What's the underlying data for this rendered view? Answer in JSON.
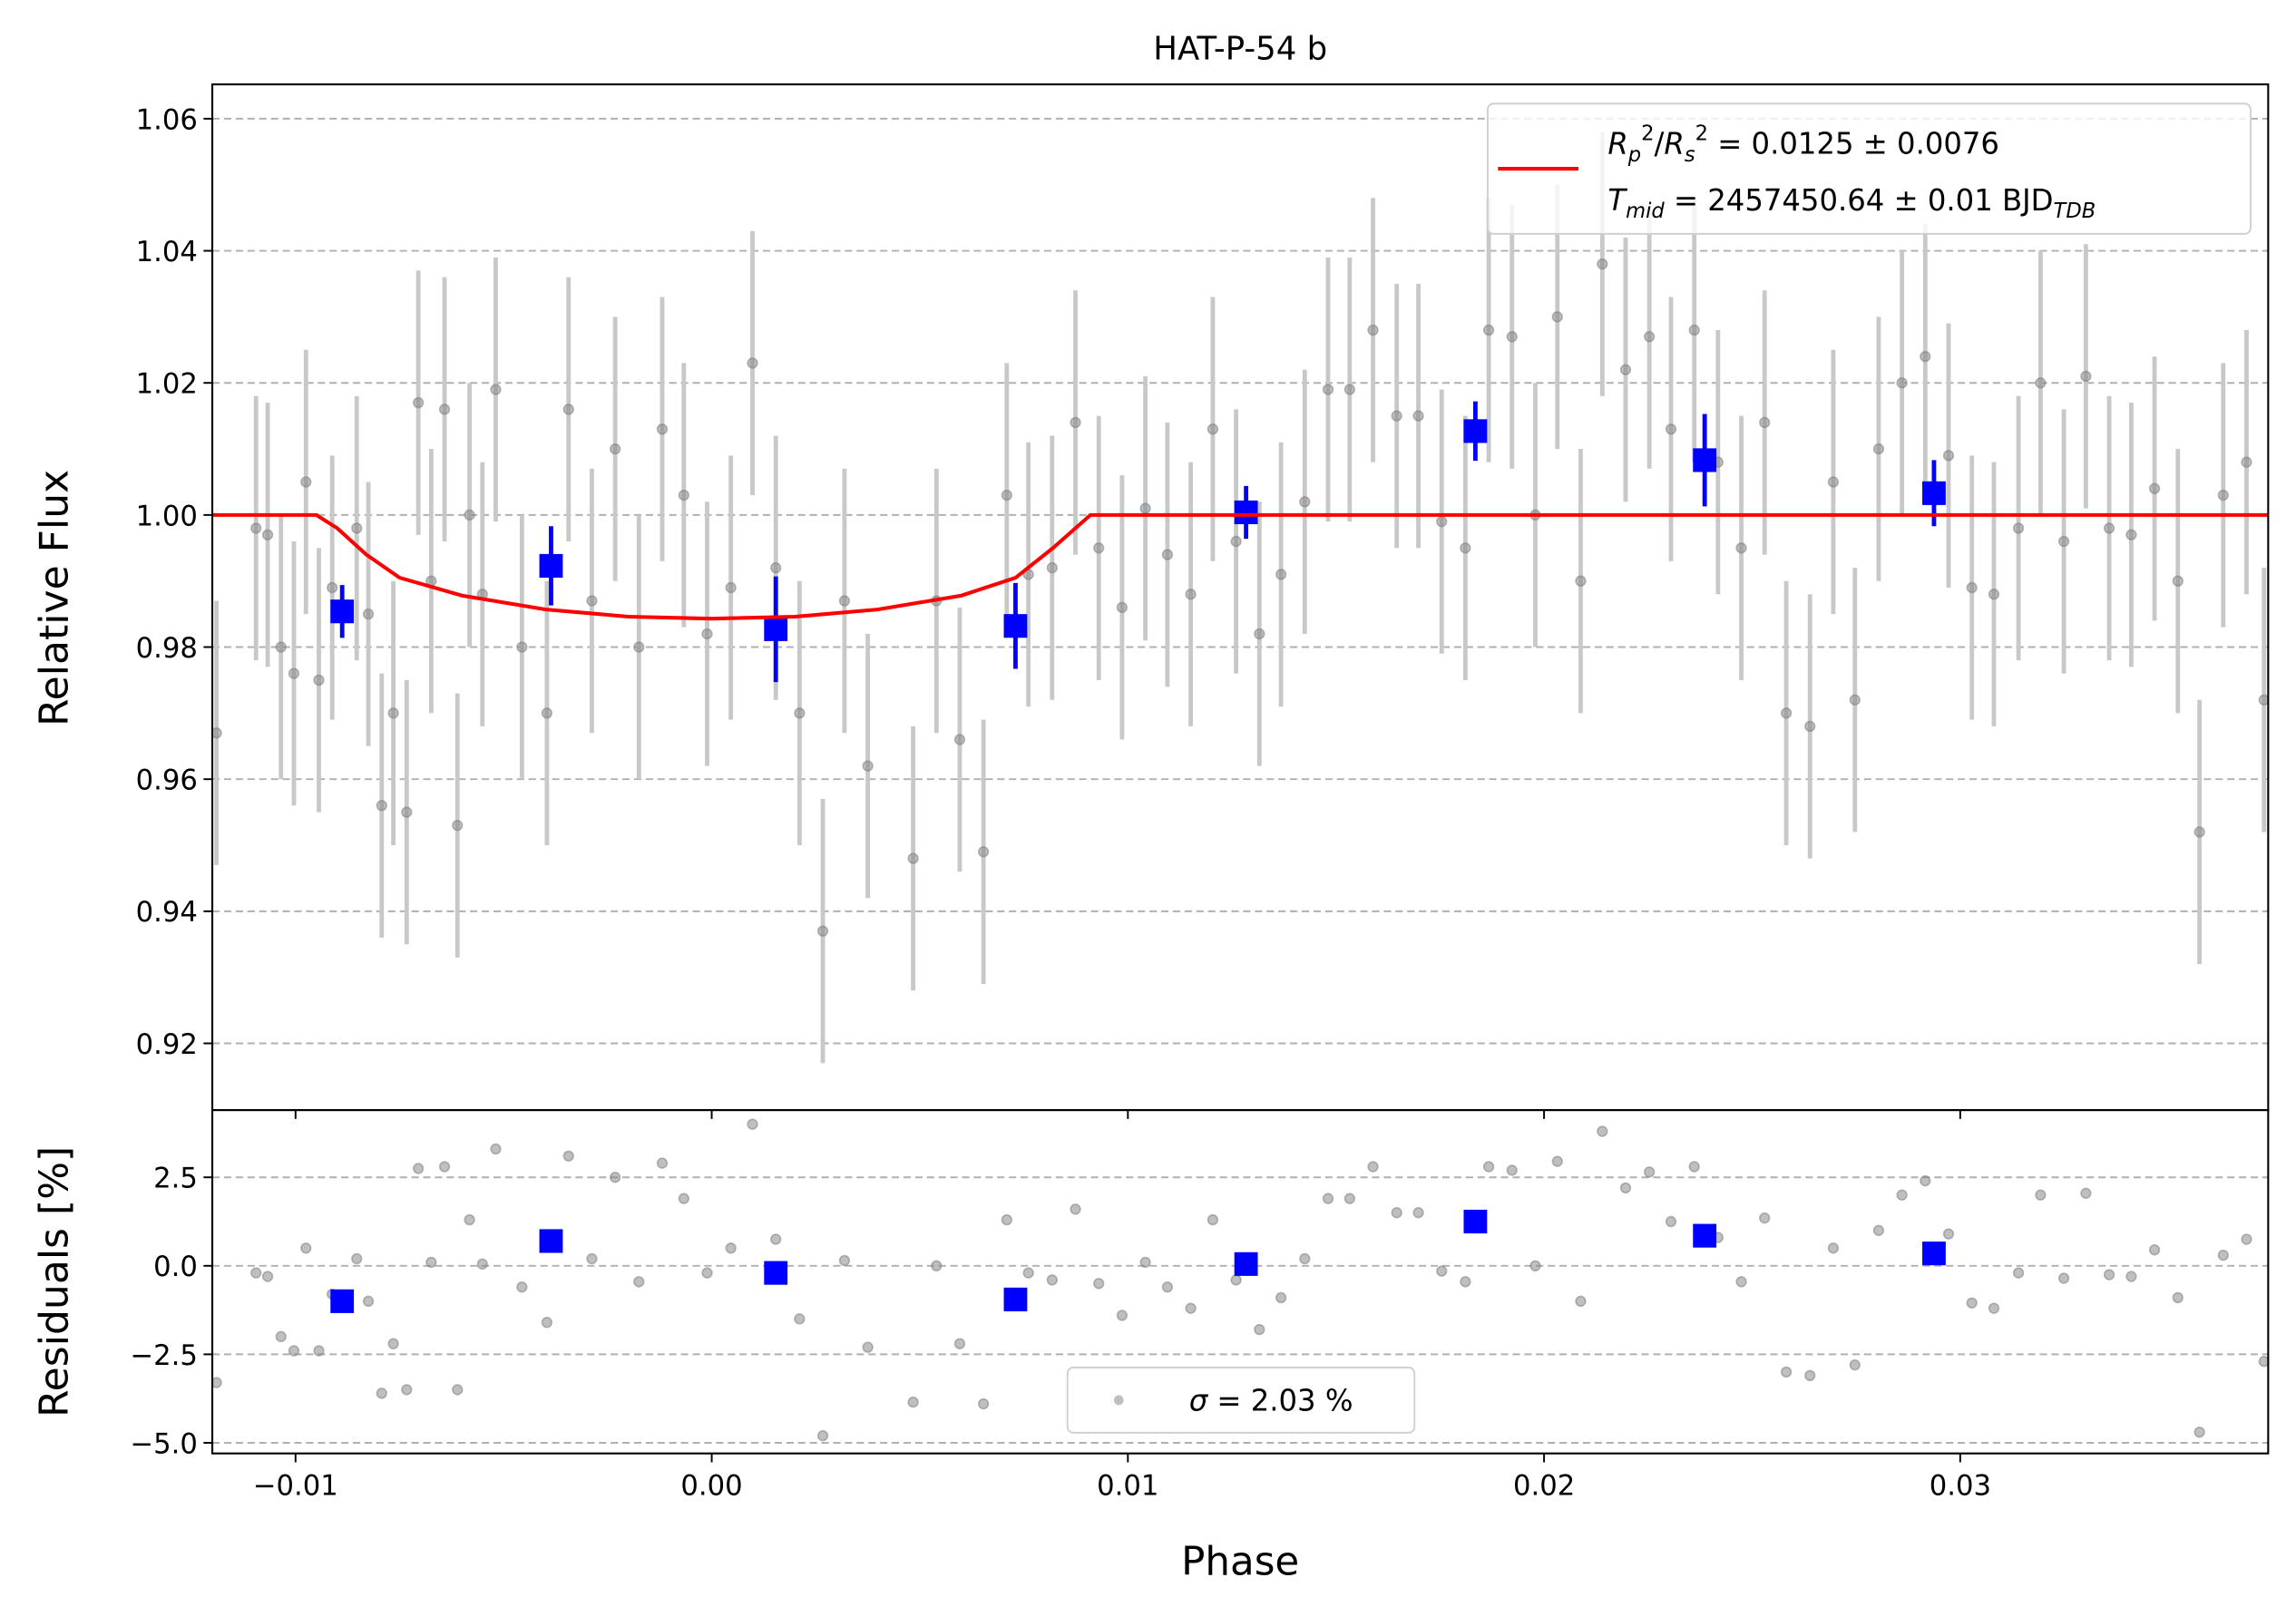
{
  "chart_data": [
    {
      "type": "scatter",
      "title": "HAT-P-54 b",
      "ylabel": "Relative Flux",
      "ylim": [
        0.9099,
        1.0652
      ],
      "yticks": [
        0.92,
        0.94,
        0.96,
        0.98,
        {
          "value": 1,
          "label": "1.00"
        },
        1.02,
        1.04,
        1.06
      ],
      "grid": true,
      "legend": "upper right",
      "series": [
        {
          "type": "scatter",
          "marker": "o",
          "color": "#808080",
          "errcolor": "#c8c8c8",
          "error": 0.02,
          "x": [
            -0.0119,
            -0.01095,
            -0.01067,
            -0.01035,
            -0.01004,
            -0.00975,
            -0.00944,
            -0.00912,
            -0.00853,
            -0.00825,
            -0.00793,
            -0.00765,
            -0.00733,
            -0.00705,
            -0.00674,
            -0.00642,
            -0.00611,
            -0.00582,
            -0.00551,
            -0.00519,
            -0.00456,
            -0.00396,
            -0.00344,
            -0.00288,
            -0.00232,
            -0.00175,
            -0.00119,
            -0.00067,
            -0.00011,
            0.00046,
            0.00098,
            0.00154,
            0.00211,
            0.00267,
            0.00319,
            0.00375,
            0.00484,
            0.0054,
            0.00596,
            0.00653,
            0.00709,
            0.00761,
            0.00818,
            0.00874,
            0.0093,
            0.00986,
            0.01042,
            0.01095,
            0.01151,
            0.01204,
            0.0126,
            0.01316,
            0.01368,
            0.01425,
            0.01481,
            0.01533,
            0.01589,
            0.01646,
            0.01698,
            0.01754,
            0.01811,
            0.01867,
            0.01923,
            0.01979,
            0.02032,
            0.02088,
            0.0214,
            0.02196,
            0.02253,
            0.02305,
            0.02361,
            0.02418,
            0.02474,
            0.0253,
            0.02582,
            0.02639,
            0.02695,
            0.02747,
            0.02804,
            0.0286,
            0.02916,
            0.02972,
            0.03028,
            0.03081,
            0.0314,
            0.03193,
            0.03249,
            0.03302,
            0.03358,
            0.03411,
            0.03467,
            0.03523,
            0.03575,
            0.03632,
            0.03688,
            0.0373
          ],
          "values": [
            0.967,
            0.998,
            0.997,
            0.98,
            0.976,
            1.005,
            0.975,
            0.989,
            0.998,
            0.985,
            0.956,
            0.97,
            0.955,
            1.017,
            0.99,
            1.016,
            0.953,
            1.0,
            0.988,
            1.019,
            0.98,
            0.97,
            1.016,
            0.987,
            1.01,
            0.98,
            1.013,
            1.003,
            0.982,
            0.989,
            1.023,
            0.992,
            0.97,
            0.937,
            0.987,
            0.962,
            0.948,
            0.987,
            0.966,
            0.949,
            1.003,
            0.991,
            0.992,
            1.014,
            0.995,
            0.986,
            1.001,
            0.994,
            0.988,
            1.013,
            0.996,
            0.982,
            0.991,
            1.002,
            1.019,
            1.019,
            1.028,
            1.015,
            1.015,
            0.999,
            0.995,
            1.028,
            1.027,
            1.0,
            1.03,
            0.99,
            1.038,
            1.022,
            1.027,
            1.013,
            1.028,
            1.008,
            0.995,
            1.014,
            0.97,
            0.968,
            1.005,
            0.972,
            1.01,
            1.02,
            1.024,
            1.009,
            0.989,
            0.988,
            0.998,
            1.02,
            0.996,
            1.021,
            0.998,
            0.997,
            1.004,
            0.99,
            0.952,
            1.003,
            1.008,
            0.972
          ]
        },
        {
          "type": "scatter",
          "marker": "s",
          "color": "#0000ff",
          "x": [
            -0.00888,
            -0.00386,
            0.00154,
            0.0073,
            0.01284,
            0.01835,
            0.02386,
            0.02937
          ],
          "values": [
            0.9854,
            0.9923,
            0.9827,
            0.9832,
            1.0004,
            1.0127,
            1.0083,
            1.0033
          ],
          "errors": [
            0.004,
            0.006,
            0.008,
            0.0065,
            0.004,
            0.0045,
            0.007,
            0.005
          ]
        },
        {
          "type": "line",
          "color": "#ff0000",
          "x": [
            -0.012,
            -0.0095,
            -0.009,
            -0.0083,
            -0.0075,
            -0.006,
            -0.004,
            -0.002,
            0,
            0.002,
            0.004,
            0.006,
            0.0073,
            0.0082,
            0.0091,
            0.0374
          ],
          "values": [
            1,
            1,
            0.998,
            0.994,
            0.9905,
            0.9878,
            0.9857,
            0.9846,
            0.9843,
            0.9846,
            0.9857,
            0.9878,
            0.9905,
            0.995,
            1,
            1
          ],
          "name": [
            [
              {
                "text": "R",
                "style": "italic"
              },
              {
                "text": "p",
                "style": "sub"
              },
              {
                "text": "2",
                "style": "sup"
              },
              {
                "text": "/",
                "style": "normal"
              },
              {
                "text": "R",
                "style": "italic"
              },
              {
                "text": "s",
                "style": "sub"
              },
              {
                "text": "2",
                "style": "sup"
              },
              {
                "text": " = 0.0125 ± 0.0076",
                "style": "normal"
              }
            ],
            [
              {
                "text": "T",
                "style": "italic"
              },
              {
                "text": "mid",
                "style": "sub"
              },
              {
                "text": " = 2457450.64 ± 0.01 BJD",
                "style": "normal"
              },
              {
                "text": "TDB",
                "style": "sub"
              }
            ]
          ]
        }
      ]
    },
    {
      "type": "scatter",
      "ylabel": "Residuals [%]",
      "xlabel": "Phase",
      "xlim": [
        -0.012,
        0.0374
      ],
      "xticks": [
        {
          "value": -0.01,
          "label": "−0.01"
        },
        {
          "value": 0,
          "label": "0.00"
        },
        0.01,
        0.02,
        0.03
      ],
      "ylim": [
        -5.3,
        4.4
      ],
      "yticks": [
        {
          "value": -5,
          "label": "−5.0"
        },
        {
          "value": -2.5,
          "label": "−2.5"
        },
        {
          "value": 0,
          "label": "0.0"
        },
        2.5
      ],
      "grid": true,
      "legend": "lower center",
      "series": [
        {
          "type": "scatter",
          "marker": "o",
          "color": "#808080",
          "x": [
            -0.0119,
            -0.01095,
            -0.01067,
            -0.01035,
            -0.01004,
            -0.00975,
            -0.00944,
            -0.00912,
            -0.00853,
            -0.00825,
            -0.00793,
            -0.00765,
            -0.00733,
            -0.00705,
            -0.00674,
            -0.00642,
            -0.00611,
            -0.00582,
            -0.00551,
            -0.00519,
            -0.00456,
            -0.00396,
            -0.00344,
            -0.00288,
            -0.00232,
            -0.00175,
            -0.00119,
            -0.00067,
            -0.00011,
            0.00046,
            0.00098,
            0.00154,
            0.00211,
            0.00267,
            0.00319,
            0.00375,
            0.00484,
            0.0054,
            0.00596,
            0.00653,
            0.00709,
            0.00761,
            0.00818,
            0.00874,
            0.0093,
            0.00986,
            0.01042,
            0.01095,
            0.01151,
            0.01204,
            0.0126,
            0.01316,
            0.01368,
            0.01425,
            0.01481,
            0.01533,
            0.01589,
            0.01646,
            0.01698,
            0.01754,
            0.01811,
            0.01867,
            0.01923,
            0.01979,
            0.02032,
            0.02088,
            0.0214,
            0.02196,
            0.02253,
            0.02305,
            0.02361,
            0.02418,
            0.02474,
            0.0253,
            0.02582,
            0.02639,
            0.02695,
            0.02747,
            0.02804,
            0.0286,
            0.02916,
            0.02972,
            0.03028,
            0.03081,
            0.0314,
            0.03193,
            0.03249,
            0.03302,
            0.03358,
            0.03411,
            0.03467,
            0.03523,
            0.03575,
            0.03632,
            0.03688,
            0.0373
          ],
          "values": [
            -3.3,
            -0.2,
            -0.3,
            -2.0,
            -2.4,
            0.5,
            -2.4,
            -0.8,
            0.2,
            -1.0,
            -3.6,
            -2.2,
            -3.5,
            2.75,
            0.1,
            2.8,
            -3.5,
            1.3,
            0.05,
            3.3,
            -0.6,
            -1.6,
            3.1,
            0.2,
            2.5,
            -0.45,
            2.9,
            1.9,
            -0.2,
            0.5,
            4.0,
            0.75,
            -1.5,
            -4.8,
            0.15,
            -2.3,
            -3.85,
            0.0,
            -2.2,
            -3.9,
            1.3,
            -0.2,
            -0.4,
            1.6,
            -0.5,
            -1.4,
            0.1,
            -0.6,
            -1.2,
            1.3,
            -0.4,
            -1.8,
            -0.9,
            0.2,
            1.9,
            1.9,
            2.8,
            1.5,
            1.5,
            -0.15,
            -0.45,
            2.8,
            2.7,
            0.0,
            2.95,
            -1.0,
            3.8,
            2.2,
            2.65,
            1.25,
            2.8,
            0.8,
            -0.45,
            1.35,
            -3.0,
            -3.1,
            0.5,
            -2.8,
            1.0,
            2.0,
            2.4,
            0.9,
            -1.05,
            -1.2,
            -0.2,
            2.0,
            -0.35,
            2.05,
            -0.25,
            -0.3,
            0.45,
            -0.9,
            -4.7,
            0.3,
            0.75,
            -2.7
          ],
          "name": [
            [
              {
                "text": "σ",
                "style": "italic"
              },
              {
                "text": " = 2.03 %",
                "style": "normal"
              }
            ]
          ]
        },
        {
          "type": "scatter",
          "marker": "s",
          "color": "#0000ff",
          "x": [
            -0.00888,
            -0.00386,
            0.00154,
            0.0073,
            0.01284,
            0.01835,
            0.02386,
            0.02937
          ],
          "values": [
            -1.0,
            0.7,
            -0.2,
            -0.95,
            0.05,
            1.25,
            0.85,
            0.35
          ]
        }
      ]
    }
  ]
}
